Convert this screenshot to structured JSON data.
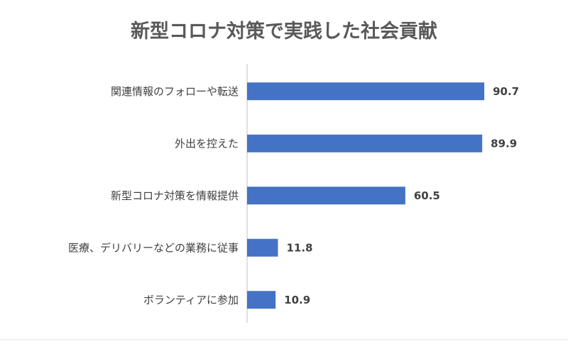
{
  "chart_data": {
    "type": "bar",
    "orientation": "horizontal",
    "title": "新型コロナ対策で実践した社会貢献",
    "categories": [
      "関連情報のフォローや転送",
      "外出を控えた",
      "新型コロナ対策を情報提供",
      "医療、デリバリーなどの業務に従事",
      "ボランティアに参加"
    ],
    "values": [
      90.7,
      89.9,
      60.5,
      11.8,
      10.9
    ],
    "value_labels": [
      "90.7",
      "89.9",
      "60.5",
      "11.8",
      "10.9"
    ],
    "xlim": [
      0,
      100
    ],
    "grid": false,
    "legend": "none",
    "bar_color": "#4472c4",
    "axis_color": "#bfbfbf"
  }
}
